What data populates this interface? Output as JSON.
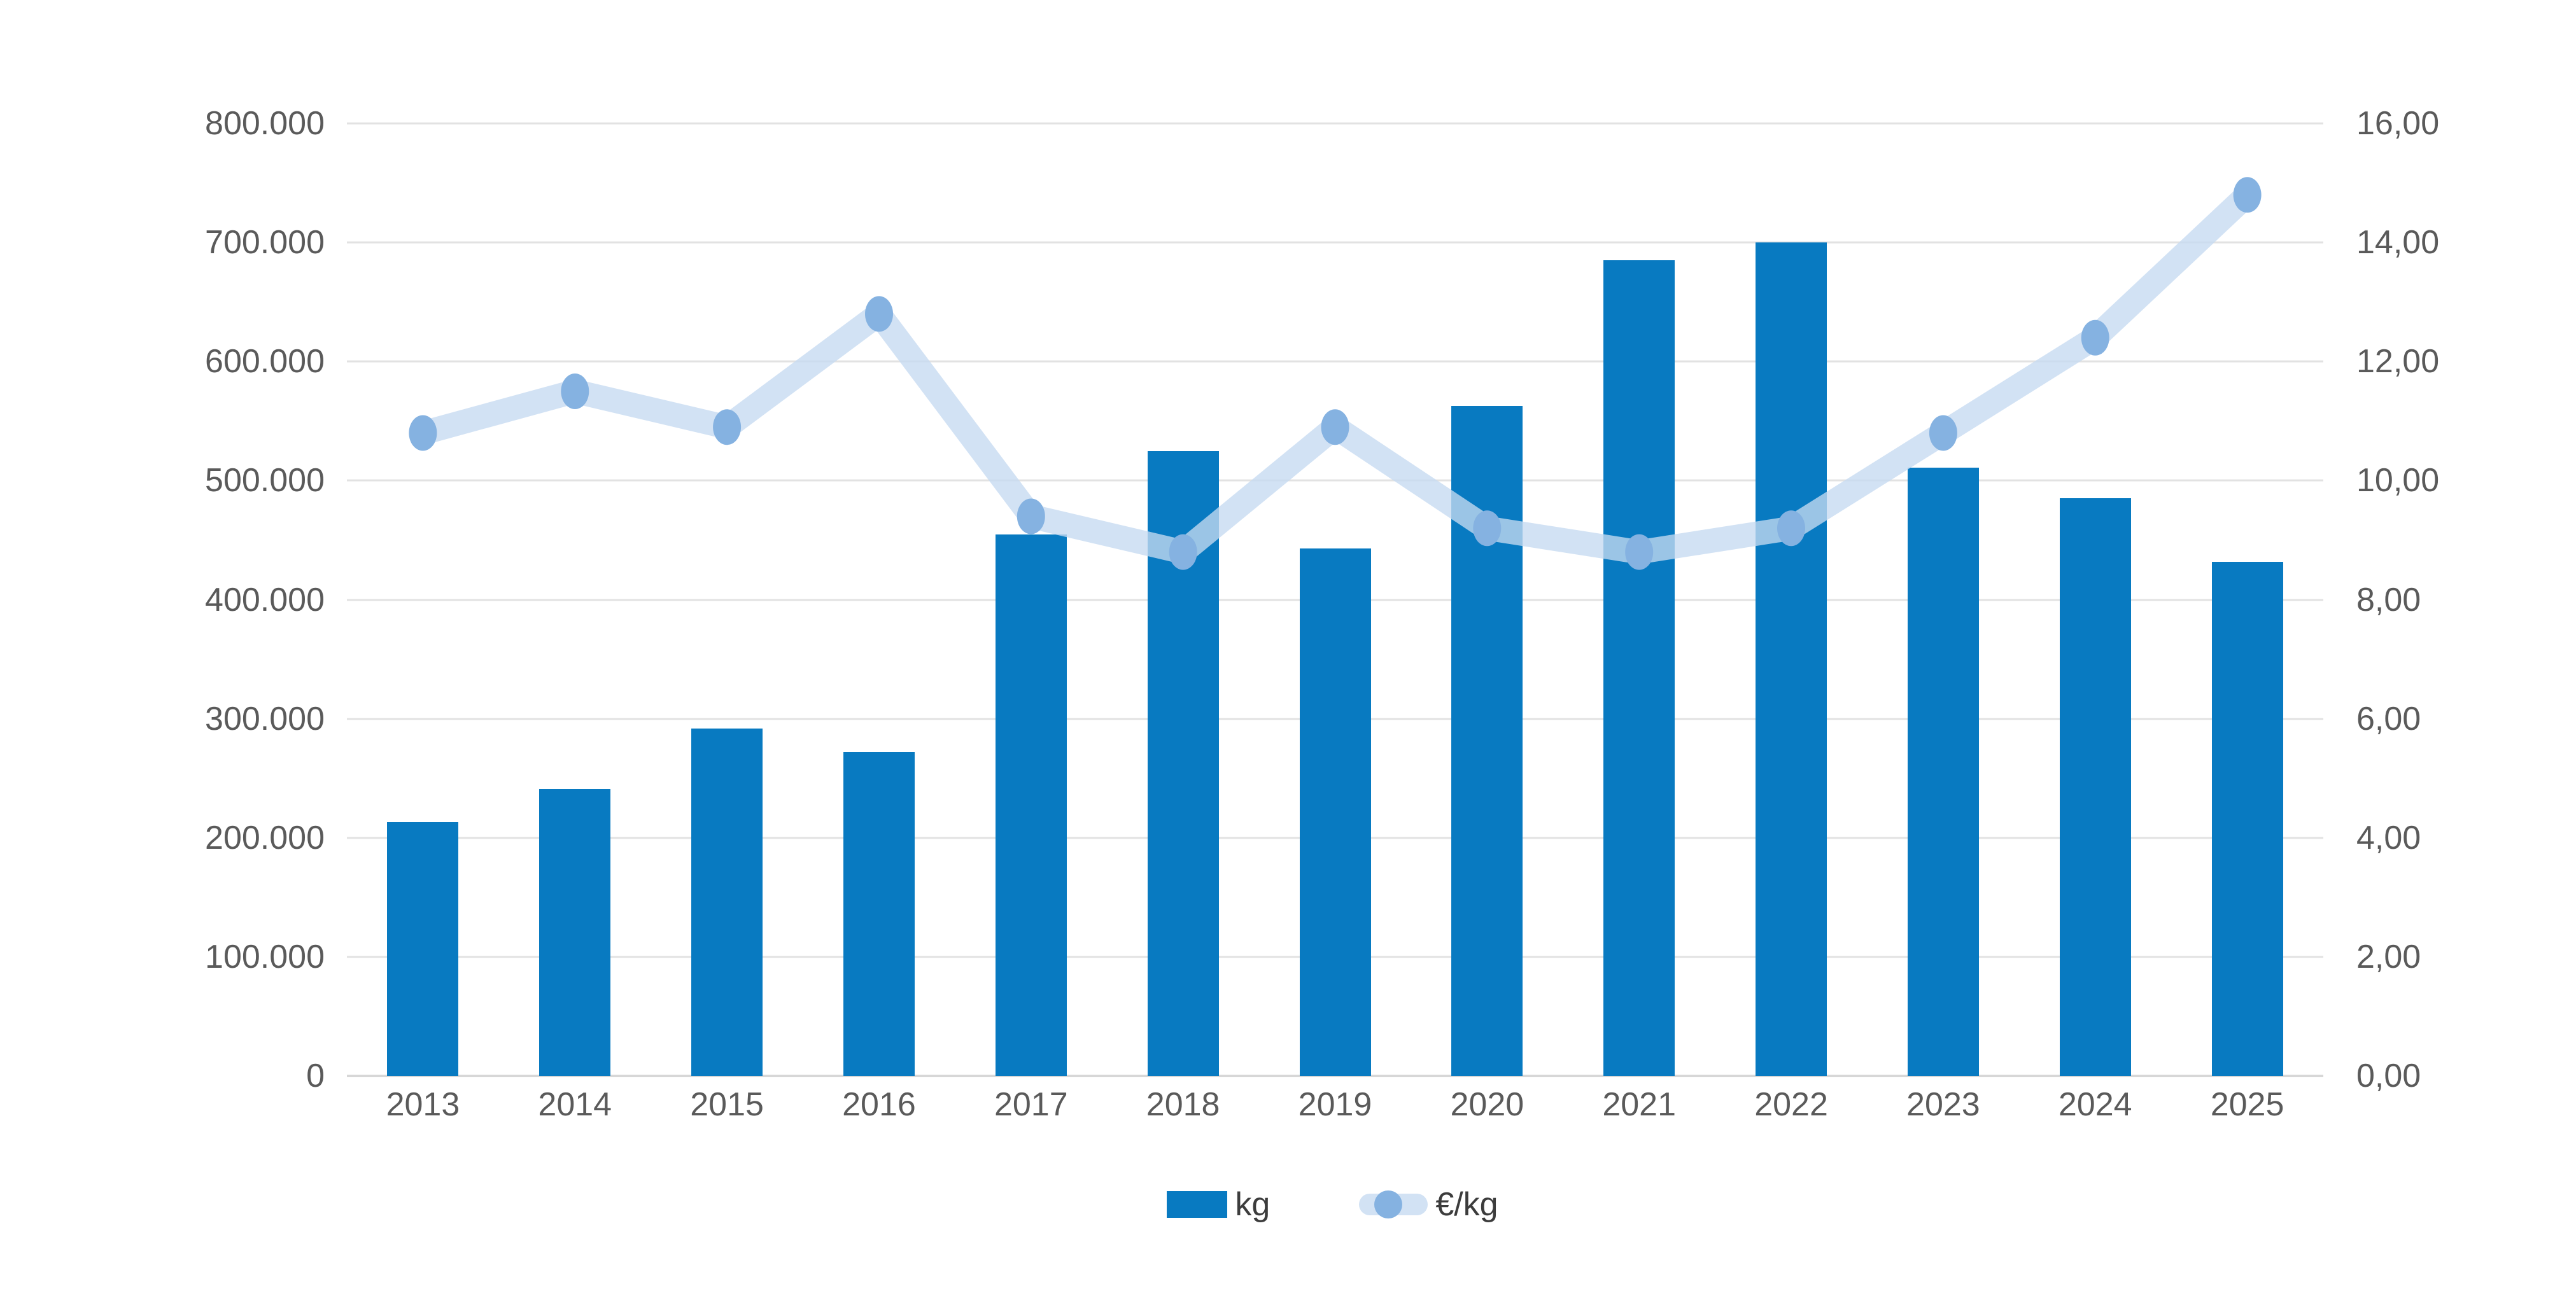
{
  "chart_data": {
    "type": "combo-bar-line",
    "categories": [
      "2013",
      "2014",
      "2015",
      "2016",
      "2017",
      "2018",
      "2019",
      "2020",
      "2021",
      "2022",
      "2023",
      "2024",
      "2025"
    ],
    "series": [
      {
        "name": "kg",
        "type": "bar",
        "axis": "left",
        "values": [
          213000,
          241000,
          292000,
          272000,
          455000,
          525000,
          443000,
          563000,
          685000,
          700000,
          511000,
          485000,
          432000
        ]
      },
      {
        "name": "€/kg",
        "type": "line",
        "axis": "right",
        "values": [
          10.8,
          11.5,
          10.9,
          12.8,
          9.4,
          8.8,
          10.9,
          9.2,
          8.8,
          9.2,
          10.8,
          12.4,
          14.8
        ]
      }
    ],
    "left_axis": {
      "min": 0,
      "max": 800000,
      "step": 100000,
      "tick_labels": [
        "800.000",
        "700.000",
        "600.000",
        "500.000",
        "400.000",
        "300.000",
        "200.000",
        "100.000",
        "0"
      ]
    },
    "right_axis": {
      "min": 0,
      "max": 16,
      "step": 2,
      "tick_labels": [
        "16,00",
        "14,00",
        "12,00",
        "10,00",
        "8,00",
        "6,00",
        "4,00",
        "2,00",
        "0,00"
      ]
    },
    "grid": true,
    "legend_position": "bottom"
  },
  "colors": {
    "bar": "#087AC1",
    "line_apparent": "#D2E2F4",
    "line_stroke": "#C5DAF1",
    "marker": "#85B2E1",
    "gridline": "#E2E2E2",
    "axis_line": "#D7D7D7",
    "text": "#5A5A5A"
  }
}
